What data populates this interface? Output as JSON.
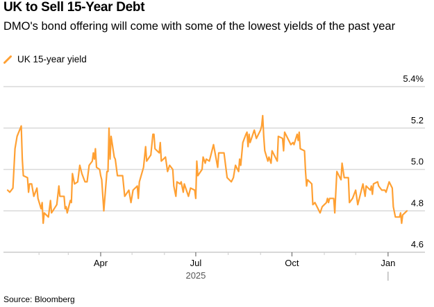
{
  "title": "UK to Sell 15-Year Debt",
  "subtitle": "DMO's bond offering will come with some of the lowest yields of the past year",
  "legend": {
    "label": "UK 15-year yield",
    "icon": "orange-line-icon"
  },
  "source": "Source: Bloomberg",
  "colors": {
    "series": "#ffa033",
    "grid": "#d9d9d9",
    "axis": "#cccccc"
  },
  "chart_data": {
    "type": "line",
    "title": "",
    "xlabel": "",
    "ylabel": "",
    "xlim": [
      "2024-12-28",
      "2026-01-28"
    ],
    "ylim": [
      4.6,
      5.4
    ],
    "grid": true,
    "legend_position": "top-left",
    "y_ticks": [
      {
        "value": 5.4,
        "label": "5.4%"
      },
      {
        "value": 5.2,
        "label": "5.2"
      },
      {
        "value": 5.0,
        "label": "5.0"
      },
      {
        "value": 4.8,
        "label": "4.8"
      },
      {
        "value": 4.6,
        "label": "4.6"
      }
    ],
    "x_ticks": [
      {
        "date": "2025-04-01",
        "label": "Apr"
      },
      {
        "date": "2025-07-01",
        "label": "Jul"
      },
      {
        "date": "2025-10-01",
        "label": "Oct"
      },
      {
        "date": "2026-01-01",
        "label": "Jan"
      }
    ],
    "x_minor_ticks": [
      "2025-02-01",
      "2025-03-01",
      "2025-05-01",
      "2025-06-01",
      "2025-08-01",
      "2025-09-01",
      "2025-11-01",
      "2025-12-01"
    ],
    "year_label": {
      "date": "2025-07-01",
      "label": "2025"
    },
    "series": [
      {
        "name": "UK 15-year yield",
        "points": [
          [
            "2025-01-02",
            4.9
          ],
          [
            "2025-01-04",
            4.89
          ],
          [
            "2025-01-07",
            4.91
          ],
          [
            "2025-01-09",
            5.1
          ],
          [
            "2025-01-11",
            5.16
          ],
          [
            "2025-01-15",
            5.21
          ],
          [
            "2025-01-16",
            5.05
          ],
          [
            "2025-01-17",
            4.97
          ],
          [
            "2025-01-21",
            4.96
          ],
          [
            "2025-01-22",
            4.89
          ],
          [
            "2025-01-23",
            4.93
          ],
          [
            "2025-01-25",
            4.93
          ],
          [
            "2025-01-27",
            4.87
          ],
          [
            "2025-01-30",
            4.91
          ],
          [
            "2025-01-31",
            4.86
          ],
          [
            "2025-02-03",
            4.81
          ],
          [
            "2025-02-04",
            4.84
          ],
          [
            "2025-02-05",
            4.74
          ],
          [
            "2025-02-06",
            4.79
          ],
          [
            "2025-02-10",
            4.77
          ],
          [
            "2025-02-12",
            4.85
          ],
          [
            "2025-02-13",
            4.79
          ],
          [
            "2025-02-18",
            4.83
          ],
          [
            "2025-02-20",
            4.92
          ],
          [
            "2025-02-21",
            4.87
          ],
          [
            "2025-02-25",
            4.87
          ],
          [
            "2025-02-26",
            4.81
          ],
          [
            "2025-02-27",
            4.82
          ],
          [
            "2025-02-28",
            4.79
          ],
          [
            "2025-03-03",
            4.85
          ],
          [
            "2025-03-04",
            4.84
          ],
          [
            "2025-03-05",
            4.98
          ],
          [
            "2025-03-07",
            4.93
          ],
          [
            "2025-03-10",
            4.94
          ],
          [
            "2025-03-12",
            5.02
          ],
          [
            "2025-03-14",
            4.98
          ],
          [
            "2025-03-17",
            4.94
          ],
          [
            "2025-03-19",
            4.94
          ],
          [
            "2025-03-21",
            5.02
          ],
          [
            "2025-03-24",
            5.04
          ],
          [
            "2025-03-25",
            5.08
          ],
          [
            "2025-03-26",
            5.05
          ],
          [
            "2025-03-27",
            5.1
          ],
          [
            "2025-03-28",
            5.01
          ],
          [
            "2025-03-31",
            5.0
          ],
          [
            "2025-04-01",
            4.97
          ],
          [
            "2025-04-02",
            4.95
          ],
          [
            "2025-04-04",
            4.8
          ],
          [
            "2025-04-07",
            4.99
          ],
          [
            "2025-04-08",
            4.99
          ],
          [
            "2025-04-09",
            5.2
          ],
          [
            "2025-04-10",
            5.05
          ],
          [
            "2025-04-11",
            5.16
          ],
          [
            "2025-04-14",
            5.06
          ],
          [
            "2025-04-15",
            5.05
          ],
          [
            "2025-04-17",
            4.97
          ],
          [
            "2025-04-22",
            4.97
          ],
          [
            "2025-04-24",
            4.87
          ],
          [
            "2025-04-28",
            4.9
          ],
          [
            "2025-04-30",
            4.84
          ],
          [
            "2025-05-02",
            4.9
          ],
          [
            "2025-05-06",
            4.92
          ],
          [
            "2025-05-07",
            4.86
          ],
          [
            "2025-05-08",
            4.94
          ],
          [
            "2025-05-12",
            5.01
          ],
          [
            "2025-05-14",
            5.11
          ],
          [
            "2025-05-15",
            5.04
          ],
          [
            "2025-05-19",
            5.07
          ],
          [
            "2025-05-21",
            5.17
          ],
          [
            "2025-05-22",
            5.17
          ],
          [
            "2025-05-23",
            5.1
          ],
          [
            "2025-05-27",
            5.08
          ],
          [
            "2025-05-28",
            5.13
          ],
          [
            "2025-05-29",
            5.04
          ],
          [
            "2025-06-02",
            5.06
          ],
          [
            "2025-06-04",
            4.99
          ],
          [
            "2025-06-06",
            5.02
          ],
          [
            "2025-06-09",
            5.0
          ],
          [
            "2025-06-10",
            4.92
          ],
          [
            "2025-06-12",
            4.87
          ],
          [
            "2025-06-13",
            4.94
          ],
          [
            "2025-06-16",
            4.93
          ],
          [
            "2025-06-17",
            4.94
          ],
          [
            "2025-06-19",
            4.89
          ],
          [
            "2025-06-20",
            4.93
          ],
          [
            "2025-06-24",
            4.87
          ],
          [
            "2025-06-26",
            4.91
          ],
          [
            "2025-06-30",
            4.9
          ],
          [
            "2025-07-01",
            4.86
          ],
          [
            "2025-07-02",
            5.04
          ],
          [
            "2025-07-03",
            4.97
          ],
          [
            "2025-07-07",
            5.0
          ],
          [
            "2025-07-08",
            5.06
          ],
          [
            "2025-07-10",
            5.03
          ],
          [
            "2025-07-11",
            5.05
          ],
          [
            "2025-07-14",
            5.04
          ],
          [
            "2025-07-18",
            5.12
          ],
          [
            "2025-07-22",
            5.01
          ],
          [
            "2025-07-23",
            5.08
          ],
          [
            "2025-07-28",
            5.08
          ],
          [
            "2025-07-31",
            4.96
          ],
          [
            "2025-08-04",
            4.94
          ],
          [
            "2025-08-06",
            4.96
          ],
          [
            "2025-08-08",
            5.02
          ],
          [
            "2025-08-11",
            4.99
          ],
          [
            "2025-08-12",
            5.05
          ],
          [
            "2025-08-13",
            5.02
          ],
          [
            "2025-08-15",
            5.13
          ],
          [
            "2025-08-18",
            5.17
          ],
          [
            "2025-08-19",
            5.18
          ],
          [
            "2025-08-20",
            5.11
          ],
          [
            "2025-08-21",
            5.17
          ],
          [
            "2025-08-22",
            5.13
          ],
          [
            "2025-08-26",
            5.19
          ],
          [
            "2025-08-28",
            5.15
          ],
          [
            "2025-09-01",
            5.19
          ],
          [
            "2025-09-02",
            5.21
          ],
          [
            "2025-09-03",
            5.26
          ],
          [
            "2025-09-04",
            5.16
          ],
          [
            "2025-09-05",
            5.09
          ],
          [
            "2025-09-08",
            5.04
          ],
          [
            "2025-09-09",
            5.06
          ],
          [
            "2025-09-11",
            5.03
          ],
          [
            "2025-09-12",
            5.09
          ],
          [
            "2025-09-15",
            5.06
          ],
          [
            "2025-09-17",
            5.04
          ],
          [
            "2025-09-18",
            5.16
          ],
          [
            "2025-09-22",
            5.15
          ],
          [
            "2025-09-23",
            5.09
          ],
          [
            "2025-09-24",
            5.18
          ],
          [
            "2025-09-29",
            5.13
          ],
          [
            "2025-09-30",
            5.12
          ],
          [
            "2025-10-02",
            5.13
          ],
          [
            "2025-10-03",
            5.12
          ],
          [
            "2025-10-06",
            5.17
          ],
          [
            "2025-10-07",
            5.14
          ],
          [
            "2025-10-08",
            5.18
          ],
          [
            "2025-10-09",
            5.1
          ],
          [
            "2025-10-13",
            5.09
          ],
          [
            "2025-10-14",
            4.99
          ],
          [
            "2025-10-15",
            4.92
          ],
          [
            "2025-10-16",
            4.95
          ],
          [
            "2025-10-20",
            4.93
          ],
          [
            "2025-10-21",
            4.83
          ],
          [
            "2025-10-23",
            4.84
          ],
          [
            "2025-10-28",
            4.79
          ],
          [
            "2025-10-30",
            4.82
          ],
          [
            "2025-11-03",
            4.84
          ],
          [
            "2025-11-04",
            4.86
          ],
          [
            "2025-11-05",
            4.84
          ],
          [
            "2025-11-06",
            4.86
          ],
          [
            "2025-11-10",
            4.86
          ],
          [
            "2025-11-11",
            4.79
          ],
          [
            "2025-11-13",
            4.99
          ],
          [
            "2025-11-17",
            4.95
          ],
          [
            "2025-11-18",
            5.03
          ],
          [
            "2025-11-20",
            4.96
          ],
          [
            "2025-11-24",
            4.96
          ],
          [
            "2025-11-25",
            4.84
          ],
          [
            "2025-11-28",
            4.86
          ],
          [
            "2025-12-01",
            4.9
          ],
          [
            "2025-12-03",
            4.83
          ],
          [
            "2025-12-08",
            4.93
          ],
          [
            "2025-12-10",
            4.87
          ],
          [
            "2025-12-11",
            4.92
          ],
          [
            "2025-12-15",
            4.9
          ],
          [
            "2025-12-16",
            4.92
          ],
          [
            "2025-12-17",
            4.88
          ],
          [
            "2025-12-18",
            4.93
          ],
          [
            "2025-12-22",
            4.94
          ],
          [
            "2025-12-23",
            4.92
          ],
          [
            "2025-12-26",
            4.9
          ],
          [
            "2025-12-29",
            4.9
          ],
          [
            "2025-12-30",
            4.89
          ],
          [
            "2026-01-02",
            4.94
          ],
          [
            "2026-01-05",
            4.91
          ],
          [
            "2026-01-06",
            4.82
          ],
          [
            "2026-01-08",
            4.77
          ],
          [
            "2026-01-12",
            4.77
          ],
          [
            "2026-01-13",
            4.79
          ],
          [
            "2026-01-14",
            4.74
          ],
          [
            "2026-01-15",
            4.78
          ],
          [
            "2026-01-19",
            4.8
          ]
        ]
      }
    ]
  }
}
